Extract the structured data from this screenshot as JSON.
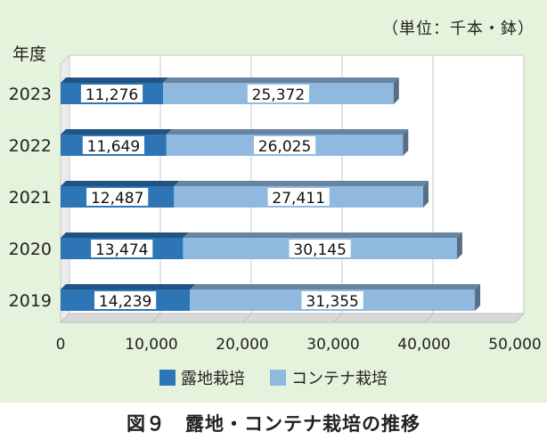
{
  "chart_data": {
    "type": "bar",
    "orientation": "horizontal",
    "stacked": true,
    "unit_note": "（単位：千本・鉢）",
    "y_title": "年度",
    "categories": [
      "2023",
      "2022",
      "2021",
      "2020",
      "2019"
    ],
    "series": [
      {
        "name": "露地栽培",
        "values": [
          11276,
          11649,
          12487,
          13474,
          14239
        ],
        "labels": [
          "11,276",
          "11,649",
          "12,487",
          "13,474",
          "14,239"
        ],
        "color": "#2e75b6"
      },
      {
        "name": "コンテナ栽培",
        "values": [
          25372,
          26025,
          27411,
          30145,
          31355
        ],
        "labels": [
          "25,372",
          "26,025",
          "27,411",
          "30,145",
          "31,355"
        ],
        "color": "#8fb9df"
      }
    ],
    "x_ticks": [
      "0",
      "10,000",
      "20,000",
      "30,000",
      "40,000",
      "50,000"
    ],
    "xlim": [
      0,
      50000
    ],
    "grid": true,
    "legend_position": "bottom"
  },
  "caption": "図９　露地・コンテナ栽培の推移"
}
